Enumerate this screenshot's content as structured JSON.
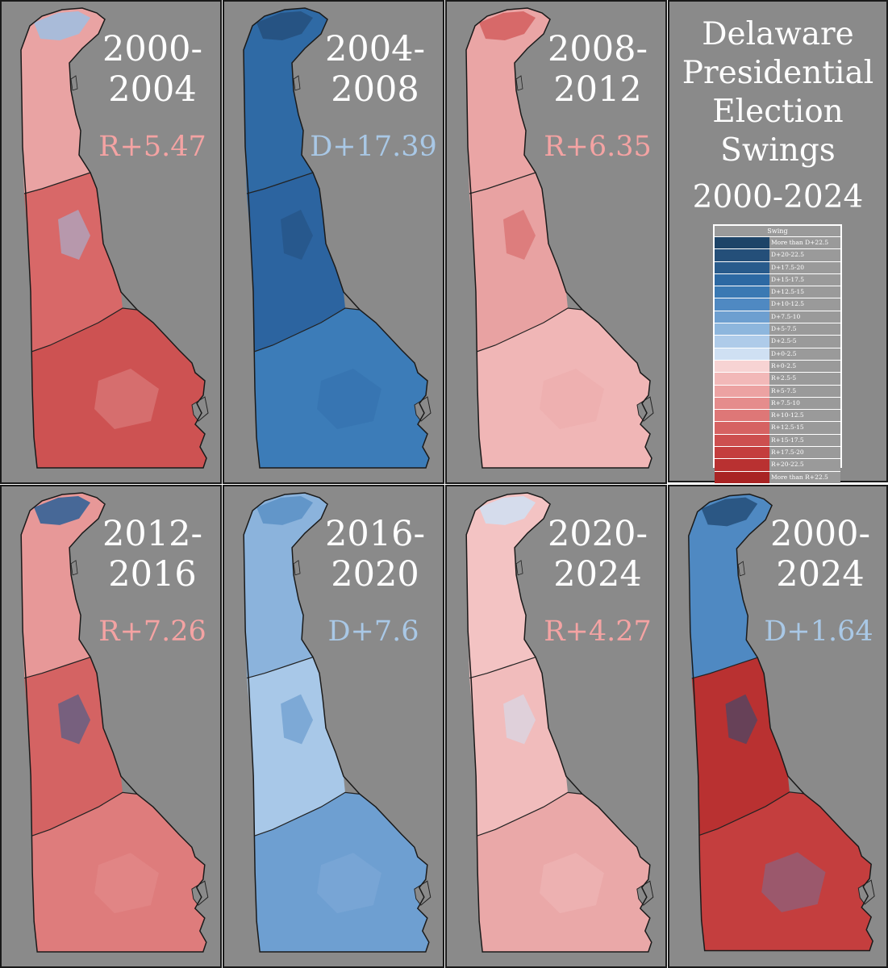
{
  "title": {
    "lines": [
      "Delaware",
      "Presidential",
      "Election",
      "Swings",
      "2000-2024"
    ]
  },
  "legend": {
    "heading": "Swing",
    "items": [
      {
        "label": "More than D+22.5",
        "color": "#1d4468"
      },
      {
        "label": "D+20-22.5",
        "color": "#244f79"
      },
      {
        "label": "D+17.5-20",
        "color": "#285b8c"
      },
      {
        "label": "D+15-17.5",
        "color": "#2c69a3"
      },
      {
        "label": "D+12.5-15",
        "color": "#3a79b3"
      },
      {
        "label": "D+10-12.5",
        "color": "#4f89c2"
      },
      {
        "label": "D+7.5-10",
        "color": "#6d9fd0"
      },
      {
        "label": "D+5-7.5",
        "color": "#8db6dd"
      },
      {
        "label": "D+2.5-5",
        "color": "#aecbe9"
      },
      {
        "label": "D+0-2.5",
        "color": "#cfe0f3"
      },
      {
        "label": "R+0-2.5",
        "color": "#f7d3d3"
      },
      {
        "label": "R+2.5-5",
        "color": "#f2b8b8"
      },
      {
        "label": "R+5-7.5",
        "color": "#eca2a2"
      },
      {
        "label": "R+7.5-10",
        "color": "#e58c8c"
      },
      {
        "label": "R+10-12.5",
        "color": "#de7777"
      },
      {
        "label": "R+12.5-15",
        "color": "#d66262"
      },
      {
        "label": "R+15-17.5",
        "color": "#cd4f4f"
      },
      {
        "label": "R+17.5-20",
        "color": "#c43e3e"
      },
      {
        "label": "R+20-22.5",
        "color": "#b93131"
      },
      {
        "label": "More than R+22.5",
        "color": "#a92424"
      }
    ]
  },
  "maps": [
    {
      "period_top": "2000-",
      "period_bottom": "2004",
      "swing": "R+5.47",
      "party": "R",
      "colors": {
        "north": "#e9a3a3",
        "north_accent": "#9dbfe3",
        "middle": "#d86868",
        "south": "#cd5252"
      }
    },
    {
      "period_top": "2004-",
      "period_bottom": "2008",
      "swing": "D+17.39",
      "party": "D",
      "colors": {
        "north": "#2f6aa5",
        "north_accent": "#254f7d",
        "middle": "#2c64a0",
        "south": "#3c7cb8"
      }
    },
    {
      "period_top": "2008-",
      "period_bottom": "2012",
      "swing": "R+6.35",
      "party": "R",
      "colors": {
        "north": "#eaa5a5",
        "north_accent": "#d45e5e",
        "middle": "#e8a2a2",
        "south": "#f0b6b6"
      }
    },
    {
      "period_top": "2012-",
      "period_bottom": "2016",
      "swing": "R+7.26",
      "party": "R",
      "colors": {
        "north": "#e79898",
        "north_accent": "#2a5f96",
        "middle": "#d46363",
        "south": "#de7c7c"
      }
    },
    {
      "period_top": "2016-",
      "period_bottom": "2020",
      "swing": "D+7.6",
      "party": "D",
      "colors": {
        "north": "#8bb3dc",
        "north_accent": "#5a90c6",
        "middle": "#a8c8e8",
        "south": "#6e9fd1"
      }
    },
    {
      "period_top": "2020-",
      "period_bottom": "2024",
      "swing": "R+4.27",
      "party": "R",
      "colors": {
        "north": "#f3c3c3",
        "north_accent": "#cfe0f3",
        "middle": "#f1bcbc",
        "south": "#eaa8a8"
      }
    },
    {
      "period_top": "2000-",
      "period_bottom": "2024",
      "swing": "D+1.64",
      "party": "D",
      "colors": {
        "north": "#4f89c2",
        "north_accent": "#244f79",
        "middle": "#b93131",
        "south": "#c43e3e"
      }
    }
  ],
  "swing_colors": {
    "R": "#f4a3a3",
    "D": "#a9c8e6"
  }
}
